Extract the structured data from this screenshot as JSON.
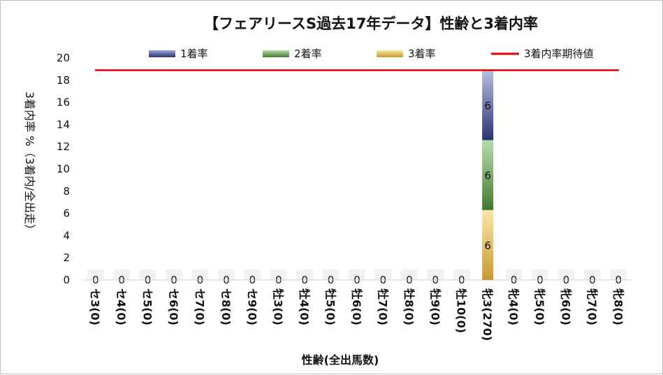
{
  "chart_data": {
    "type": "bar",
    "stacked": true,
    "title": "【フェアリースS過去17年データ】性齢と3着内率",
    "xlabel": "性齢(全出馬数)",
    "ylabel": "3着内率 %（3着内/全出走）",
    "ylim": [
      0,
      20
    ],
    "yticks": [
      "0",
      "2",
      "4",
      "6",
      "8",
      "10",
      "12",
      "14",
      "16",
      "18",
      "20"
    ],
    "grid": false,
    "legend_position": "top",
    "categories": [
      "セ3(0)",
      "セ4(0)",
      "セ5(0)",
      "セ6(0)",
      "セ7(0)",
      "セ8(0)",
      "セ9(0)",
      "牡3(0)",
      "牡4(0)",
      "牡5(0)",
      "牡6(0)",
      "牡7(0)",
      "牡8(0)",
      "牡9(0)",
      "牡10(0)",
      "牝3(270)",
      "牝4(0)",
      "牝5(0)",
      "牝6(0)",
      "牝7(0)",
      "牝8(0)"
    ],
    "series": [
      {
        "name": "3着率",
        "color": "#e8c060",
        "values": [
          0,
          0,
          0,
          0,
          0,
          0,
          0,
          0,
          0,
          0,
          0,
          0,
          0,
          0,
          0,
          6.3,
          0,
          0,
          0,
          0,
          0
        ]
      },
      {
        "name": "2着率",
        "color": "#7fb068",
        "values": [
          0,
          0,
          0,
          0,
          0,
          0,
          0,
          0,
          0,
          0,
          0,
          0,
          0,
          0,
          0,
          6.3,
          0,
          0,
          0,
          0,
          0
        ]
      },
      {
        "name": "1着率",
        "color": "#6a78b8",
        "values": [
          0,
          0,
          0,
          0,
          0,
          0,
          0,
          0,
          0,
          0,
          0,
          0,
          0,
          0,
          0,
          6.3,
          0,
          0,
          0,
          0,
          0
        ]
      }
    ],
    "data_labels": [
      {
        "category": "牝3(270)",
        "series": "3着率",
        "text": "6"
      },
      {
        "category": "牝3(270)",
        "series": "2着率",
        "text": "6"
      },
      {
        "category": "牝3(270)",
        "series": "1着率",
        "text": "6"
      }
    ],
    "zero_labels": [
      "0",
      "0",
      "0",
      "0",
      "0",
      "0",
      "0",
      "0",
      "0",
      "0",
      "0",
      "0",
      "0",
      "0",
      "0",
      "0",
      "0",
      "0",
      "0",
      "0"
    ],
    "legend": [
      {
        "name": "1着率",
        "kind": "bar",
        "color": "#6a78b8"
      },
      {
        "name": "2着率",
        "kind": "bar",
        "color": "#7fb068"
      },
      {
        "name": "3着率",
        "kind": "bar",
        "color": "#e8c060"
      },
      {
        "name": "3着内率期待値",
        "kind": "line",
        "color": "#e00000"
      }
    ],
    "reference_line": {
      "name": "3着内率期待値",
      "value": 18.9,
      "color": "#e00000"
    }
  }
}
